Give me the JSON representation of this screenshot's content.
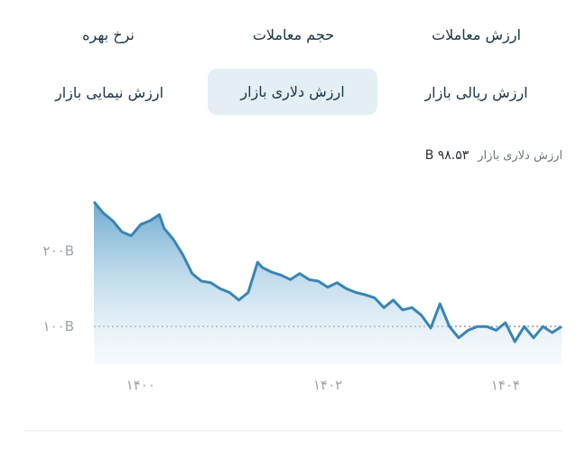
{
  "tabs": [
    {
      "label": "ارزش معاملات",
      "active": false
    },
    {
      "label": "حجم معاملات",
      "active": false
    },
    {
      "label": "نرخ بهره",
      "active": false
    },
    {
      "label": "ارزش ریالی بازار",
      "active": false
    },
    {
      "label": "ارزش دلاری بازار",
      "active": true
    },
    {
      "label": "ارزش نیمایی بازار",
      "active": false
    }
  ],
  "readout": {
    "label": "ارزش دلاری بازار",
    "value": "B ۹۸.۵۳"
  },
  "colors": {
    "line": "#3a84b4",
    "fill_top": "#5da1cb",
    "active_tab_bg": "#e3eff5"
  },
  "chart_data": {
    "type": "area",
    "y_ticks": [
      "۲۰۰B",
      "۱۰۰B"
    ],
    "y_tick_values": [
      200,
      100
    ],
    "x_ticks": [
      "۱۴۰۰",
      "۱۴۰۲",
      "۱۴۰۴"
    ],
    "x_tick_values": [
      0.1,
      0.5,
      0.88
    ],
    "reference_line": 100,
    "ylim": [
      50,
      270
    ],
    "series": [
      {
        "x": [
          0.0,
          0.02,
          0.04,
          0.06,
          0.08,
          0.1,
          0.12,
          0.14,
          0.15,
          0.17,
          0.19,
          0.21,
          0.23,
          0.25,
          0.27,
          0.29,
          0.31,
          0.33,
          0.35,
          0.36,
          0.38,
          0.4,
          0.42,
          0.44,
          0.46,
          0.48,
          0.5,
          0.52,
          0.54,
          0.56,
          0.58,
          0.6,
          0.62,
          0.64,
          0.66,
          0.68,
          0.7,
          0.72,
          0.74,
          0.76,
          0.78,
          0.8,
          0.82,
          0.84,
          0.86,
          0.88,
          0.9,
          0.92,
          0.94,
          0.96,
          0.98,
          1.0
        ],
        "y": [
          265,
          250,
          240,
          225,
          220,
          235,
          240,
          248,
          230,
          215,
          195,
          170,
          160,
          158,
          150,
          145,
          135,
          145,
          185,
          178,
          172,
          168,
          162,
          170,
          162,
          160,
          152,
          158,
          150,
          145,
          142,
          138,
          125,
          135,
          122,
          125,
          115,
          98,
          130,
          100,
          85,
          95,
          100,
          100,
          95,
          105,
          80,
          100,
          85,
          100,
          92,
          100
        ]
      }
    ]
  }
}
